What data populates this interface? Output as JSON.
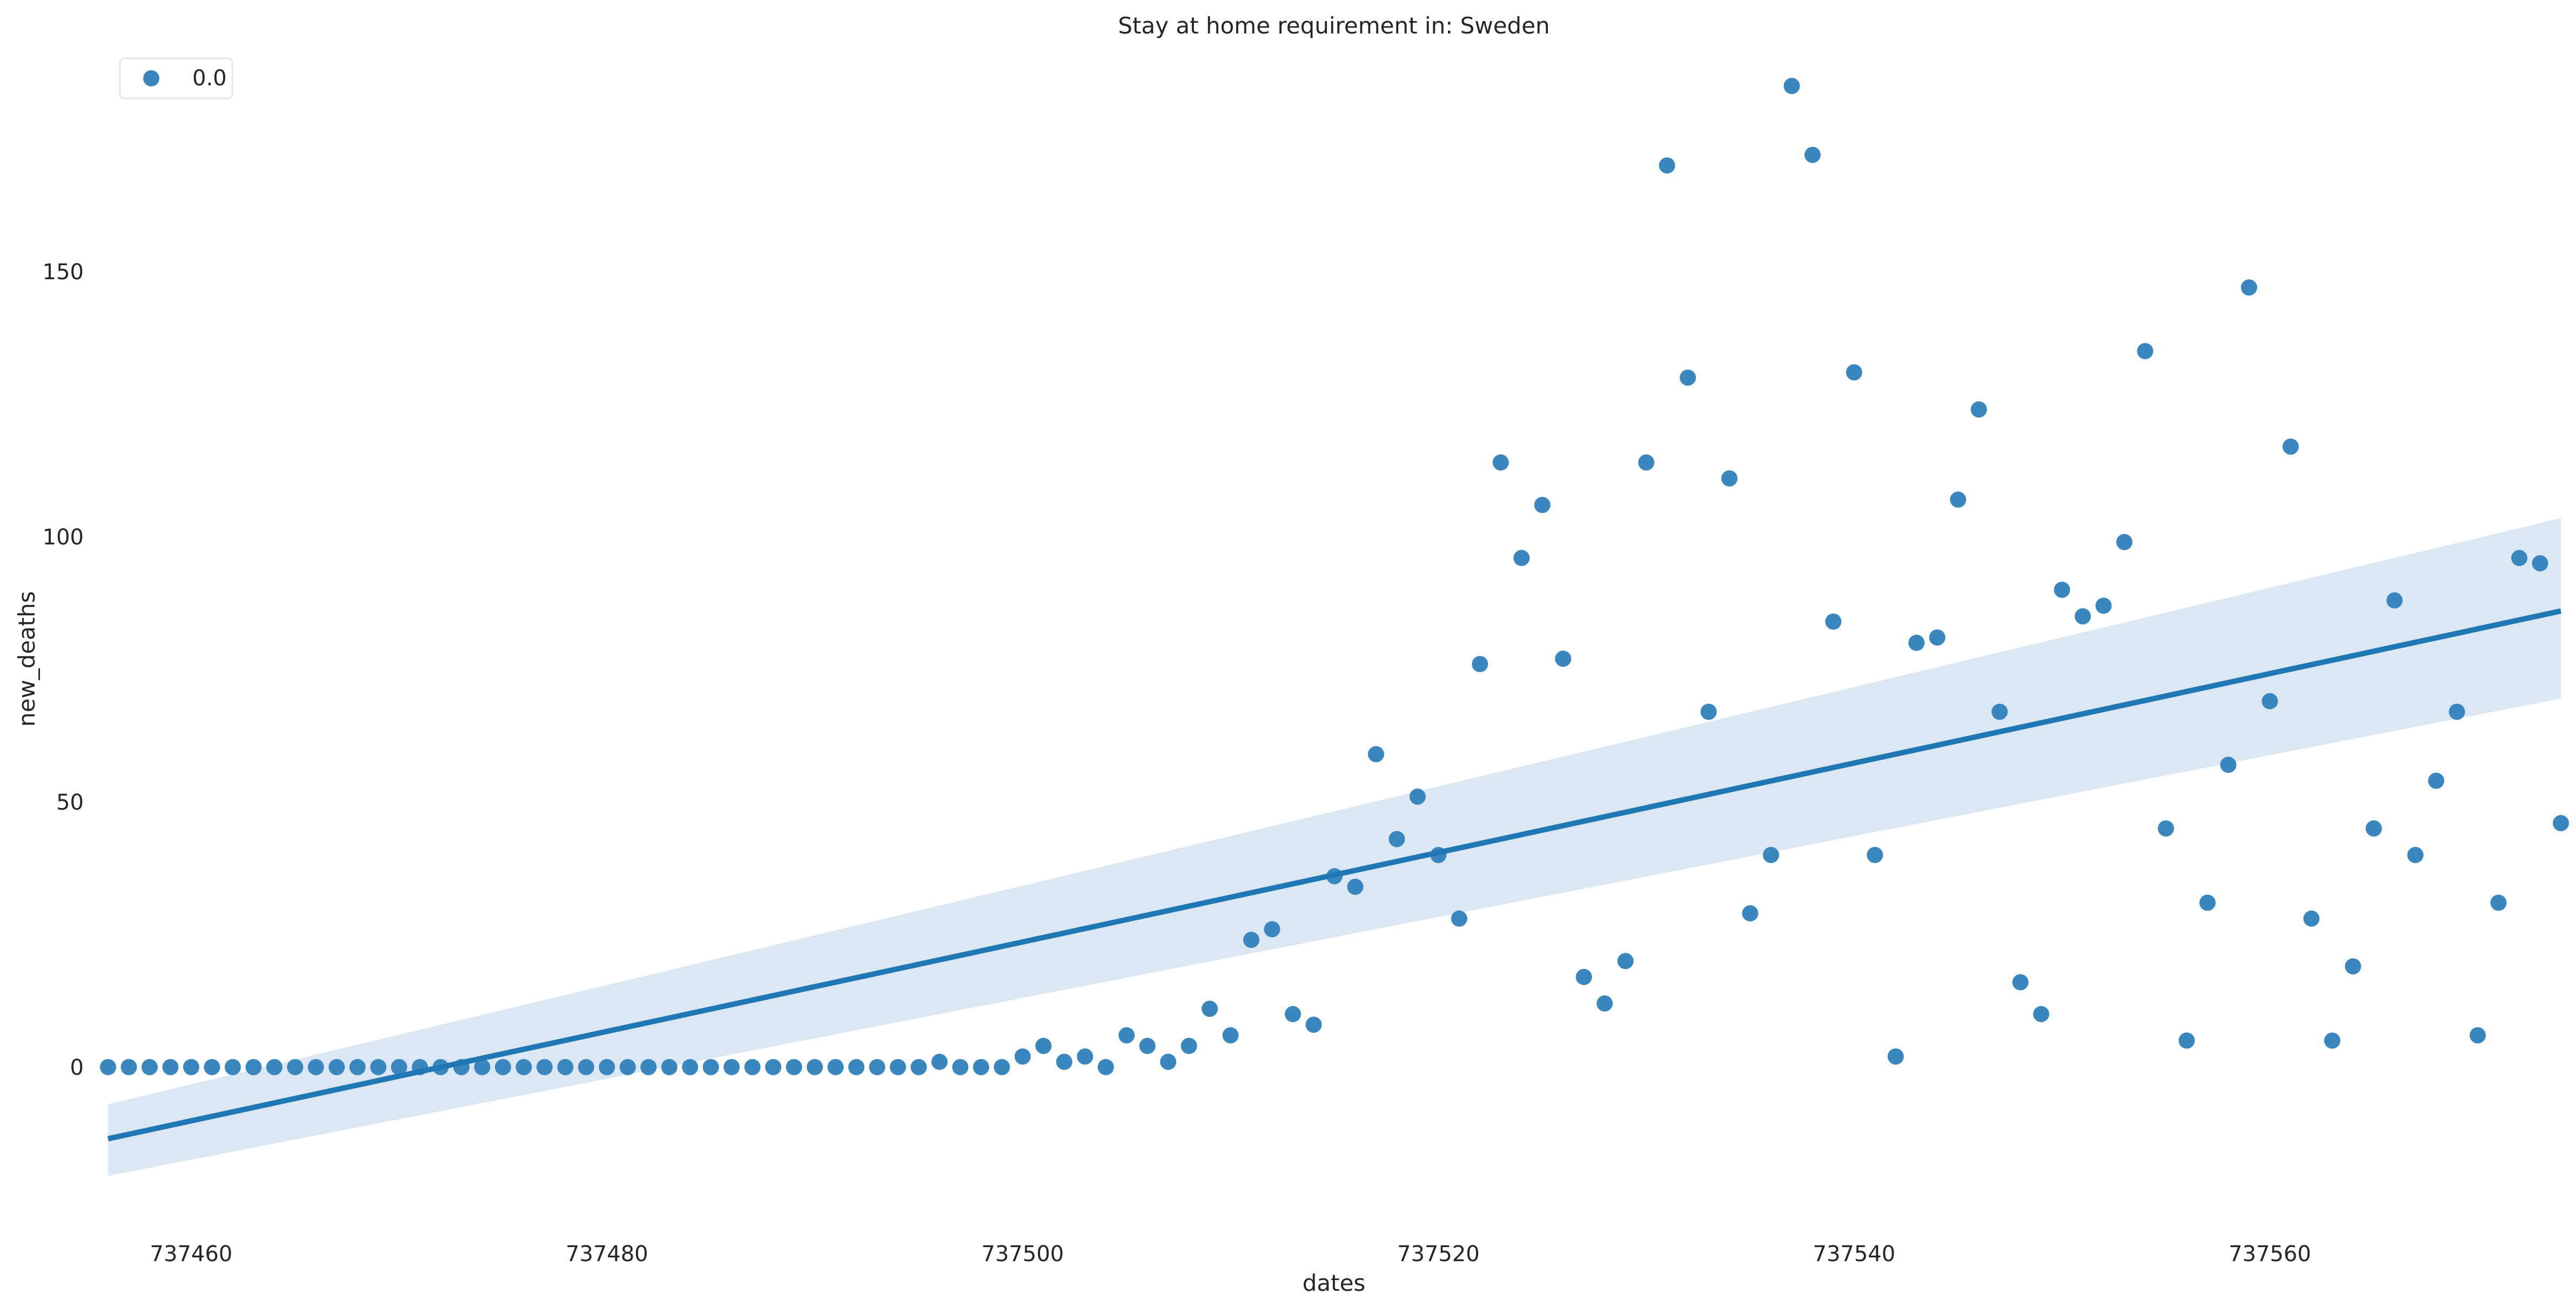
{
  "chart_data": {
    "type": "scatter",
    "title": "Stay at home requirement in: Sweden",
    "xlabel": "dates",
    "ylabel": "new_deaths",
    "xlim": [
      737456,
      737574
    ],
    "ylim": [
      -32,
      190
    ],
    "xticks": [
      737460,
      737480,
      737500,
      737520,
      737540,
      737560
    ],
    "yticks": [
      0,
      50,
      100,
      150
    ],
    "grid": false,
    "legend": {
      "placement": "top-left",
      "entries": [
        {
          "label": "0.0",
          "color": "#3a87c0"
        }
      ]
    },
    "colors": {
      "points": "#3a87c0",
      "line": "#1f77b4",
      "band": "#dbe7f3"
    },
    "series": [
      {
        "x": [
          737456,
          737457,
          737458,
          737459,
          737460,
          737461,
          737462,
          737463,
          737464,
          737465,
          737466,
          737467,
          737468,
          737469,
          737470,
          737471,
          737472,
          737473,
          737474,
          737475,
          737476,
          737477,
          737478,
          737479,
          737480,
          737481,
          737482,
          737483,
          737484,
          737485,
          737486,
          737487,
          737488,
          737489,
          737490,
          737491,
          737492,
          737493,
          737494,
          737495,
          737496,
          737497,
          737498,
          737499,
          737500,
          737501,
          737502,
          737503,
          737504,
          737505,
          737506,
          737507,
          737508,
          737509,
          737510,
          737511,
          737512,
          737513,
          737514,
          737515,
          737516,
          737517,
          737518,
          737519,
          737520,
          737521,
          737522,
          737523,
          737524,
          737525,
          737526,
          737527,
          737528,
          737529,
          737530,
          737531,
          737532,
          737533,
          737534,
          737535,
          737536,
          737537,
          737538,
          737539,
          737540,
          737541,
          737542,
          737543,
          737544,
          737545,
          737546,
          737547,
          737548,
          737549,
          737550,
          737551,
          737552,
          737553,
          737554,
          737555,
          737556,
          737557,
          737558,
          737559,
          737560,
          737561,
          737562,
          737563,
          737564,
          737565,
          737566,
          737567,
          737568,
          737569,
          737570,
          737571,
          737572,
          737573,
          737574
        ],
        "y": [
          0,
          0,
          0,
          0,
          0,
          0,
          0,
          0,
          0,
          0,
          0,
          0,
          0,
          0,
          0,
          0,
          0,
          0,
          0,
          0,
          0,
          0,
          0,
          0,
          0,
          0,
          0,
          0,
          0,
          0,
          0,
          0,
          0,
          0,
          0,
          0,
          0,
          0,
          0,
          0,
          1,
          0,
          0,
          0,
          2,
          4,
          1,
          2,
          0,
          6,
          4,
          1,
          4,
          11,
          6,
          24,
          26,
          10,
          8,
          36,
          34,
          59,
          43,
          51,
          40,
          28,
          76,
          114,
          96,
          106,
          77,
          17,
          12,
          20,
          114,
          170,
          130,
          67,
          111,
          29,
          40,
          185,
          172,
          84,
          131,
          40,
          2,
          80,
          81,
          107,
          124,
          67,
          16,
          10,
          90,
          85,
          87,
          99,
          135,
          45,
          5,
          31,
          57,
          147,
          69,
          117,
          28,
          5,
          19,
          45,
          88,
          40,
          54,
          67,
          6,
          31,
          96,
          95,
          46
        ]
      }
    ],
    "regression": {
      "x": [
        737456,
        737574
      ],
      "y": [
        -13.5,
        86
      ],
      "ci_lower": [
        -20.5,
        69.5
      ],
      "ci_upper": [
        -7,
        103.5
      ]
    }
  }
}
